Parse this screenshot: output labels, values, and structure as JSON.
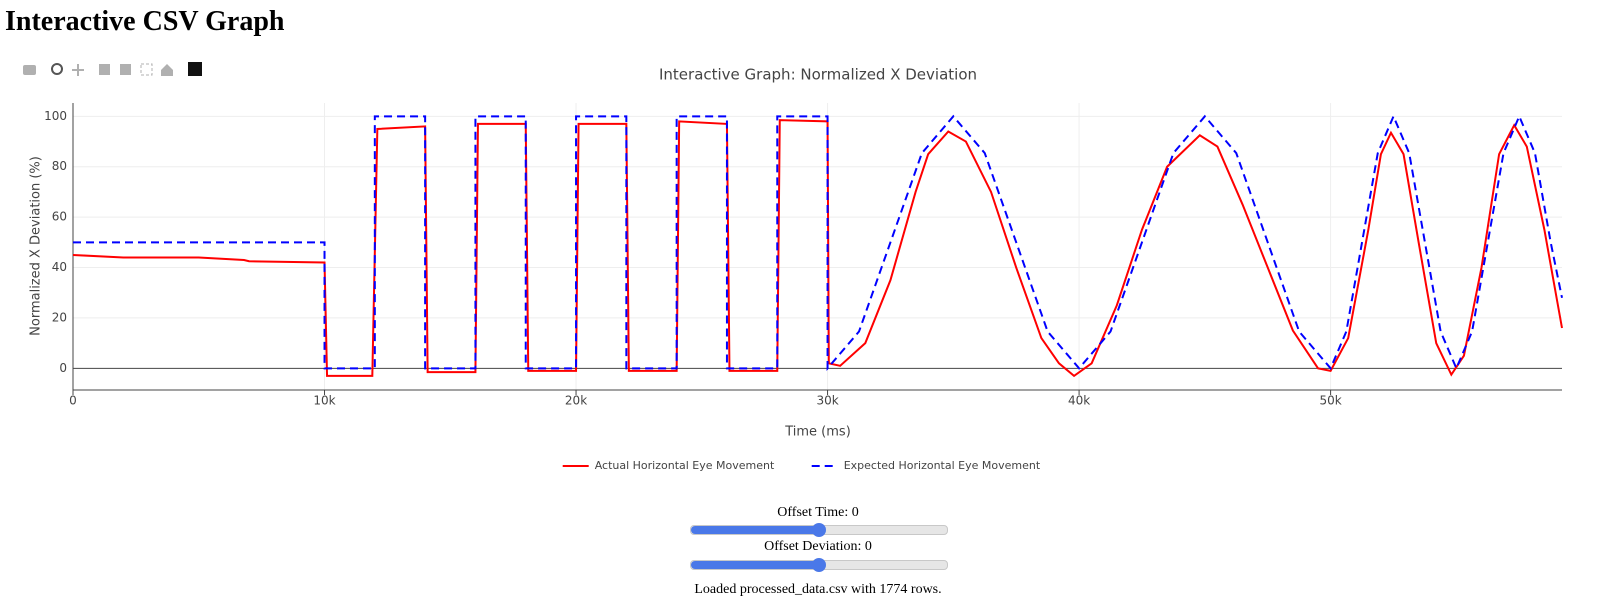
{
  "header": {
    "title": "Interactive CSV Graph"
  },
  "chart_data": {
    "type": "line",
    "title": "Interactive Graph: Normalized X Deviation",
    "x_label": "Time (ms)",
    "y_label": "Normalized X Deviation (%)",
    "xlim": [
      0,
      59200
    ],
    "ylim": [
      -8.6,
      105.3
    ],
    "xticks": [
      0,
      {
        "value": 10000,
        "label": "10k"
      },
      {
        "value": 20000,
        "label": "20k"
      },
      {
        "value": 30000,
        "label": "30k"
      },
      {
        "value": 40000,
        "label": "40k"
      },
      {
        "value": 50000,
        "label": "50k"
      }
    ],
    "yticks": [
      0,
      20,
      40,
      60,
      80,
      100
    ],
    "grid": true,
    "legend": "bottom",
    "series": [
      {
        "name": "Actual Horizontal Eye Movement",
        "color": "#ff0000",
        "dash": "solid",
        "x": [
          0,
          2000,
          5000,
          6800,
          7000,
          10000,
          10100,
          11900,
          12100,
          14000,
          14100,
          16000,
          16100,
          18000,
          18100,
          20000,
          20100,
          22000,
          22100,
          24000,
          24100,
          26000,
          26100,
          28000,
          28100,
          30000,
          30050,
          30500,
          31500,
          32500,
          33500,
          34000,
          34800,
          35500,
          36500,
          37500,
          38500,
          39200,
          39800,
          40500,
          41500,
          42500,
          43500,
          44800,
          45500,
          46500,
          47500,
          48500,
          49500,
          50000,
          50700,
          51500,
          52000,
          52400,
          52900,
          53500,
          54200,
          54800,
          55300,
          56000,
          56700,
          57300,
          57800,
          58500,
          59200
        ],
        "values": [
          45,
          44,
          44,
          43,
          42.5,
          42,
          -3,
          -3,
          95,
          96,
          -1.5,
          -1.5,
          97,
          97,
          -1,
          -1,
          97,
          97,
          -1,
          -1,
          98,
          97,
          -1,
          -1,
          98.5,
          98,
          2,
          1,
          10,
          35,
          70,
          85,
          94,
          90,
          70,
          40,
          12,
          2,
          -3,
          2,
          25,
          55,
          80,
          92.5,
          88,
          65,
          40,
          15,
          0,
          -1,
          12,
          55,
          85,
          93.5,
          85,
          50,
          10,
          -2.5,
          5,
          40,
          85,
          96.5,
          88,
          55,
          16
        ]
      },
      {
        "name": "Expected Horizontal Eye Movement",
        "color": "#0000ff",
        "dash": "dash",
        "x": [
          0,
          10000,
          10000,
          12000,
          12000,
          14000,
          14000,
          16000,
          16000,
          18000,
          18000,
          20000,
          20000,
          22000,
          22000,
          24000,
          24000,
          26000,
          26000,
          28000,
          28000,
          30000,
          30000,
          31250,
          32500,
          33750,
          35000,
          36250,
          37500,
          38750,
          40000,
          41250,
          42500,
          43750,
          45000,
          46250,
          47500,
          48750,
          50000,
          50625,
          51250,
          51875,
          52500,
          53125,
          53750,
          54375,
          55000,
          55625,
          56250,
          56875,
          57500,
          58125,
          58750,
          59200
        ],
        "values": [
          50,
          50,
          0,
          0,
          100,
          100,
          0,
          0,
          100,
          100,
          0,
          0,
          100,
          100,
          0,
          0,
          100,
          100,
          0,
          0,
          100,
          100,
          0,
          14.6,
          50,
          85.4,
          100,
          85.4,
          50,
          14.6,
          0,
          14.6,
          50,
          85.4,
          100,
          85.4,
          50,
          14.6,
          0,
          14.6,
          50,
          85.4,
          100,
          85.4,
          50,
          14.6,
          0,
          14.6,
          50,
          85.4,
          100,
          85.4,
          50,
          28
        ]
      }
    ]
  },
  "controls": [
    {
      "label": "Offset Time:",
      "value": 0
    },
    {
      "label": "Offset Deviation:",
      "value": 0
    }
  ],
  "status": "Loaded processed_data.csv with 1774 rows."
}
